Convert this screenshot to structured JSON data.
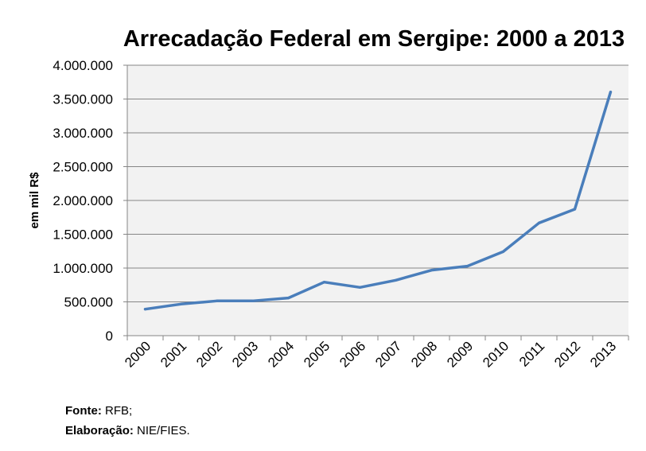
{
  "chart_data": {
    "type": "line",
    "title": "Arrecadação Federal em Sergipe: 2000 a 2013",
    "xlabel": "",
    "ylabel": "em mil R$",
    "categories": [
      "2000",
      "2001",
      "2002",
      "2003",
      "2004",
      "2005",
      "2006",
      "2007",
      "2008",
      "2009",
      "2010",
      "2011",
      "2012",
      "2013"
    ],
    "series": [
      {
        "name": "Arrecadação",
        "color": "#4a7ebb",
        "values": [
          392000,
          467000,
          514000,
          514000,
          557000,
          792000,
          714000,
          820000,
          969000,
          1028000,
          1243000,
          1667000,
          1871000,
          3604000
        ]
      }
    ],
    "ylim": [
      0,
      4000000
    ],
    "yticks": [
      0,
      500000,
      1000000,
      1500000,
      2000000,
      2500000,
      3000000,
      3500000,
      4000000
    ],
    "ytick_labels": [
      "0",
      "500.000",
      "1.000.000",
      "1.500.000",
      "2.000.000",
      "2.500.000",
      "3.000.000",
      "3.500.000",
      "4.000.000"
    ],
    "grid": true,
    "legend": "none"
  },
  "footer": {
    "source_label": "Fonte:",
    "source_value": "RFB;",
    "credit_label": "Elaboração:",
    "credit_value": "NIE/FIES."
  }
}
